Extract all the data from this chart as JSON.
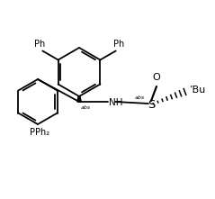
{
  "bg_color": "#ffffff",
  "line_color": "#000000",
  "line_width": 1.3,
  "font_size": 7.0,
  "fig_width": 2.39,
  "fig_height": 2.21,
  "dpi": 100,
  "xlim": [
    0,
    239
  ],
  "ylim": [
    0,
    221
  ]
}
